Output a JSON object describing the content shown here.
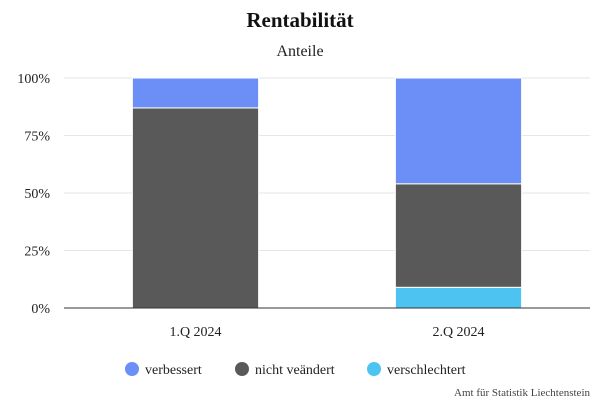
{
  "chart_data": {
    "type": "bar",
    "stacked": true,
    "title": "Rentabilität",
    "subtitle": "Anteile",
    "categories": [
      "1.Q 2024",
      "2.Q 2024"
    ],
    "series": [
      {
        "name": "verschlechtert",
        "color": "#4cc3f1",
        "values": [
          0,
          9
        ]
      },
      {
        "name": "nicht veändert",
        "color": "#595959",
        "values": [
          87,
          45
        ]
      },
      {
        "name": "verbessert",
        "color": "#6b8ef7",
        "values": [
          13,
          46
        ]
      }
    ],
    "legend_order": [
      "verbessert",
      "nicht veändert",
      "verschlechtert"
    ],
    "ylim": [
      0,
      100
    ],
    "yticks": [
      "0%",
      "25%",
      "50%",
      "75%",
      "100%"
    ],
    "grid": true,
    "legend_position": "bottom",
    "credit": "Amt für Statistik Liechtenstein"
  }
}
